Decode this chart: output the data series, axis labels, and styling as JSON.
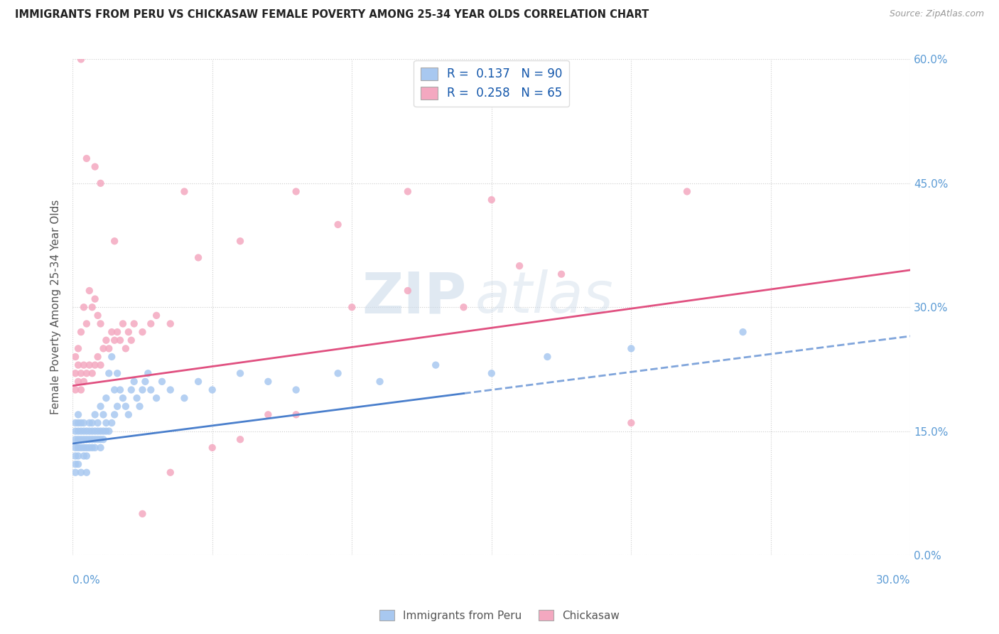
{
  "title": "IMMIGRANTS FROM PERU VS CHICKASAW FEMALE POVERTY AMONG 25-34 YEAR OLDS CORRELATION CHART",
  "source": "Source: ZipAtlas.com",
  "ylabel": "Female Poverty Among 25-34 Year Olds",
  "legend_label1": "Immigrants from Peru",
  "legend_label2": "Chickasaw",
  "R1": "0.137",
  "N1": "90",
  "R2": "0.258",
  "N2": "65",
  "color_blue": "#A8C8F0",
  "color_pink": "#F4A8C0",
  "line_blue": "#4A7FCC",
  "line_pink": "#E05080",
  "watermark_zip": "ZIP",
  "watermark_atlas": "atlas",
  "xlim": [
    0.0,
    0.3
  ],
  "ylim": [
    0.0,
    0.6
  ],
  "blue_trend_x0": 0.0,
  "blue_trend_y0": 0.135,
  "blue_trend_x1": 0.3,
  "blue_trend_y1": 0.265,
  "pink_trend_x0": 0.0,
  "pink_trend_y0": 0.205,
  "pink_trend_x1": 0.3,
  "pink_trend_y1": 0.345,
  "blue_scatter_x": [
    0.001,
    0.001,
    0.001,
    0.001,
    0.001,
    0.001,
    0.001,
    0.002,
    0.002,
    0.002,
    0.002,
    0.002,
    0.002,
    0.002,
    0.003,
    0.003,
    0.003,
    0.003,
    0.003,
    0.004,
    0.004,
    0.004,
    0.004,
    0.004,
    0.005,
    0.005,
    0.005,
    0.005,
    0.005,
    0.006,
    0.006,
    0.006,
    0.006,
    0.007,
    0.007,
    0.007,
    0.007,
    0.008,
    0.008,
    0.008,
    0.008,
    0.009,
    0.009,
    0.009,
    0.01,
    0.01,
    0.01,
    0.01,
    0.011,
    0.011,
    0.011,
    0.012,
    0.012,
    0.012,
    0.013,
    0.013,
    0.014,
    0.014,
    0.015,
    0.015,
    0.016,
    0.016,
    0.017,
    0.018,
    0.019,
    0.02,
    0.021,
    0.022,
    0.023,
    0.024,
    0.025,
    0.026,
    0.027,
    0.028,
    0.03,
    0.032,
    0.035,
    0.04,
    0.045,
    0.05,
    0.06,
    0.07,
    0.08,
    0.095,
    0.11,
    0.13,
    0.15,
    0.17,
    0.2,
    0.24
  ],
  "blue_scatter_y": [
    0.11,
    0.12,
    0.13,
    0.14,
    0.15,
    0.16,
    0.1,
    0.12,
    0.13,
    0.14,
    0.15,
    0.16,
    0.17,
    0.11,
    0.13,
    0.14,
    0.15,
    0.16,
    0.1,
    0.12,
    0.13,
    0.14,
    0.15,
    0.16,
    0.12,
    0.13,
    0.14,
    0.15,
    0.1,
    0.13,
    0.14,
    0.15,
    0.16,
    0.13,
    0.14,
    0.15,
    0.16,
    0.13,
    0.14,
    0.15,
    0.17,
    0.14,
    0.15,
    0.16,
    0.13,
    0.14,
    0.15,
    0.18,
    0.14,
    0.15,
    0.17,
    0.15,
    0.16,
    0.19,
    0.15,
    0.22,
    0.16,
    0.24,
    0.17,
    0.2,
    0.18,
    0.22,
    0.2,
    0.19,
    0.18,
    0.17,
    0.2,
    0.21,
    0.19,
    0.18,
    0.2,
    0.21,
    0.22,
    0.2,
    0.19,
    0.21,
    0.2,
    0.19,
    0.21,
    0.2,
    0.22,
    0.21,
    0.2,
    0.22,
    0.21,
    0.23,
    0.22,
    0.24,
    0.25,
    0.27
  ],
  "pink_scatter_x": [
    0.001,
    0.001,
    0.001,
    0.002,
    0.002,
    0.002,
    0.003,
    0.003,
    0.003,
    0.004,
    0.004,
    0.004,
    0.005,
    0.005,
    0.006,
    0.006,
    0.007,
    0.007,
    0.008,
    0.008,
    0.009,
    0.009,
    0.01,
    0.01,
    0.011,
    0.012,
    0.013,
    0.014,
    0.015,
    0.016,
    0.017,
    0.018,
    0.019,
    0.02,
    0.021,
    0.022,
    0.025,
    0.028,
    0.03,
    0.035,
    0.04,
    0.05,
    0.06,
    0.07,
    0.08,
    0.1,
    0.12,
    0.14,
    0.16,
    0.175,
    0.2,
    0.22,
    0.08,
    0.12,
    0.15,
    0.095,
    0.06,
    0.045,
    0.035,
    0.025,
    0.015,
    0.01,
    0.008,
    0.005,
    0.003
  ],
  "pink_scatter_y": [
    0.2,
    0.22,
    0.24,
    0.21,
    0.23,
    0.25,
    0.2,
    0.22,
    0.27,
    0.21,
    0.23,
    0.3,
    0.22,
    0.28,
    0.23,
    0.32,
    0.22,
    0.3,
    0.23,
    0.31,
    0.24,
    0.29,
    0.23,
    0.28,
    0.25,
    0.26,
    0.25,
    0.27,
    0.26,
    0.27,
    0.26,
    0.28,
    0.25,
    0.27,
    0.26,
    0.28,
    0.27,
    0.28,
    0.29,
    0.28,
    0.44,
    0.13,
    0.14,
    0.17,
    0.17,
    0.3,
    0.32,
    0.3,
    0.35,
    0.34,
    0.16,
    0.44,
    0.44,
    0.44,
    0.43,
    0.4,
    0.38,
    0.36,
    0.1,
    0.05,
    0.38,
    0.45,
    0.47,
    0.48,
    0.6
  ]
}
